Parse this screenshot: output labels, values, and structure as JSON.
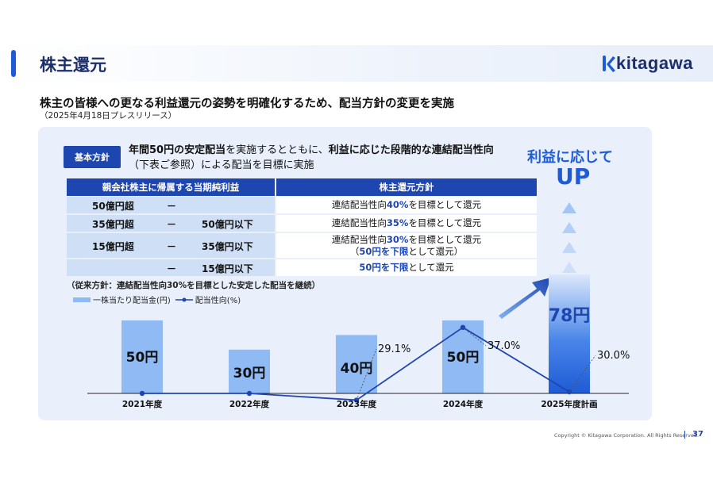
{
  "header": {
    "title": "株主還元",
    "logo_text": "kitagawa"
  },
  "subtitle": "株主の皆様への更なる利益還元の姿勢を明確化するため、配当方針の変更を実施",
  "subnote": "（2025年4月18日プレスリリース）",
  "policy": {
    "badge": "基本方針",
    "line1_a": "年間50円の安定配当",
    "line1_b": "を実施するとともに、",
    "line1_c": "利益に応じた段階的な連結配当性向",
    "line2": "（下表ご参照）による配当を目標に実施"
  },
  "table": {
    "headers": [
      "親会社株主に帰属する当期純利益",
      "株主還元方針"
    ],
    "rows": [
      {
        "low": "50億円超",
        "dash": "－",
        "high": "",
        "policy_a": "連結配当性向",
        "policy_hl": "40%",
        "policy_b": "を目標として還元",
        "policy_line2": ""
      },
      {
        "low": "35億円超",
        "dash": "－",
        "high": "50億円以下",
        "policy_a": "連結配当性向",
        "policy_hl": "35%",
        "policy_b": "を目標として還元",
        "policy_line2": ""
      },
      {
        "low": "15億円超",
        "dash": "－",
        "high": "35億円以下",
        "policy_a": "連結配当性向",
        "policy_hl": "30%",
        "policy_b": "を目標として還元",
        "policy_line2_pre": "（",
        "policy_line2_hl": "50円を下限",
        "policy_line2_post": "として還元）"
      },
      {
        "low": "",
        "dash": "－",
        "high": "15億円以下",
        "policy_a": "",
        "policy_hl": "50円を下限",
        "policy_b": "として還元",
        "policy_line2": ""
      }
    ]
  },
  "old_policy": "（従来方針：連結配当性向30%を目標とした安定した配当を継続）",
  "legend": {
    "bar_label": "一株当たり配当金(円)",
    "line_label": "配当性向(%)"
  },
  "callout": {
    "line1": "利益に応じて",
    "line2": "UP"
  },
  "chart_data": {
    "type": "bar",
    "categories": [
      "2021年度",
      "2022年度",
      "2023年度",
      "2024年度",
      "2025年度計画"
    ],
    "series": [
      {
        "name": "一株当たり配当金(円)",
        "values": [
          50,
          30,
          40,
          50,
          78
        ],
        "labels": [
          "50円",
          "30円",
          "40円",
          "50円",
          "78円"
        ]
      },
      {
        "name": "配当性向(%)",
        "values": [
          null,
          null,
          29.1,
          37.0,
          30.0
        ],
        "labels": [
          "",
          "",
          "29.1%",
          "37.0%",
          "30.0%"
        ]
      }
    ],
    "ylim": [
      0,
      100
    ],
    "colors": {
      "bar": "#8fbaf3",
      "bar_highlight": "#1e5bd6",
      "line": "#1e46b0"
    }
  },
  "footer": {
    "copyright": "Copyright © Kitagawa Corporation. All Rights Reserved.",
    "page": "37"
  }
}
